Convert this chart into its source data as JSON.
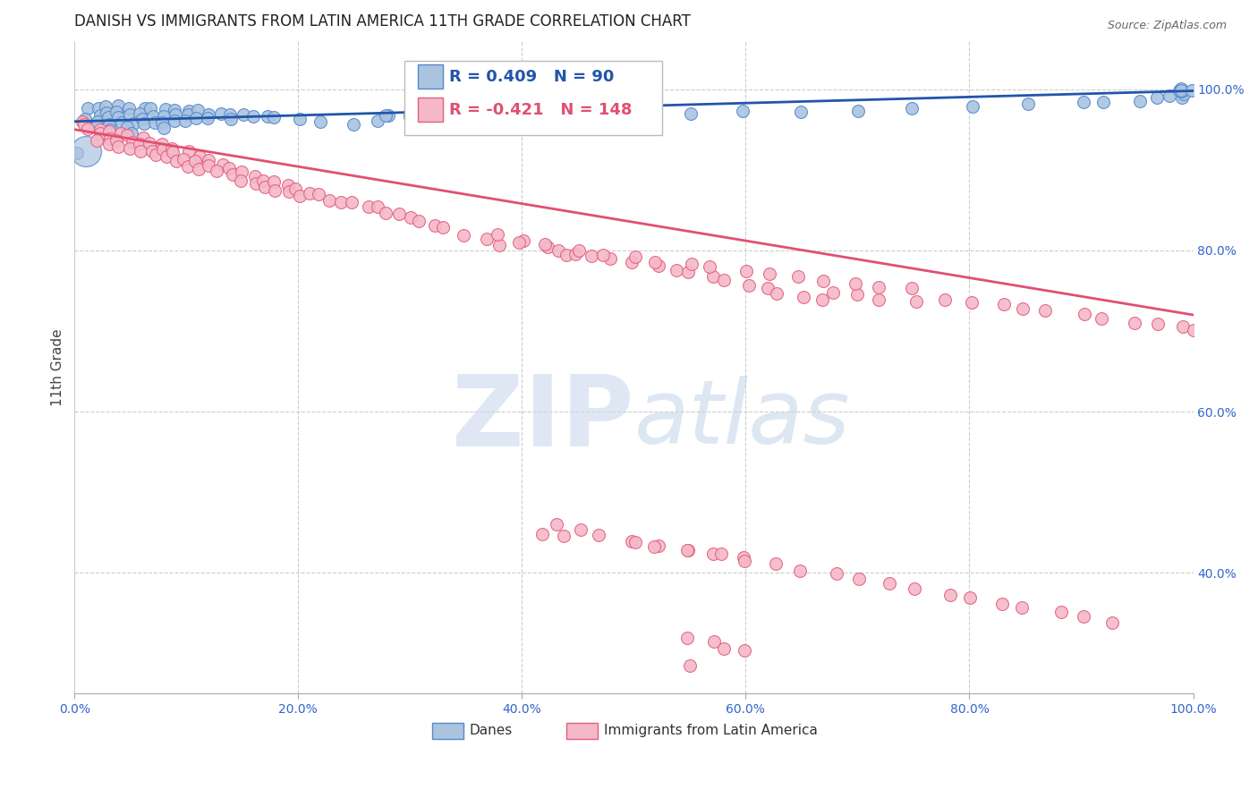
{
  "title": "DANISH VS IMMIGRANTS FROM LATIN AMERICA 11TH GRADE CORRELATION CHART",
  "source": "Source: ZipAtlas.com",
  "ylabel": "11th Grade",
  "danes_R": 0.409,
  "danes_N": 90,
  "immigrants_R": -0.421,
  "immigrants_N": 148,
  "danes_color": "#aac4e0",
  "danes_edge_color": "#5588cc",
  "danes_line_color": "#2255aa",
  "immigrants_color": "#f5b8c8",
  "immigrants_edge_color": "#e06080",
  "immigrants_line_color": "#e05070",
  "legend_danes": "Danes",
  "legend_immigrants": "Immigrants from Latin America",
  "background_color": "#ffffff",
  "grid_color": "#cccccc",
  "title_color": "#222222",
  "axis_label_color": "#444444",
  "tick_color": "#3366cc",
  "xlim": [
    0.0,
    1.0
  ],
  "ylim": [
    0.25,
    1.06
  ],
  "xticks": [
    0.0,
    0.2,
    0.4,
    0.6,
    0.8,
    1.0
  ],
  "xtick_labels": [
    "0.0%",
    "20.0%",
    "40.0%",
    "60.0%",
    "80.0%",
    "100.0%"
  ],
  "yticks": [
    0.4,
    0.6,
    0.8,
    1.0
  ],
  "ytick_labels": [
    "40.0%",
    "60.0%",
    "80.0%",
    "100.0%"
  ],
  "danes_x": [
    0.005,
    0.01,
    0.01,
    0.02,
    0.02,
    0.02,
    0.02,
    0.03,
    0.03,
    0.03,
    0.03,
    0.03,
    0.04,
    0.04,
    0.04,
    0.04,
    0.05,
    0.05,
    0.05,
    0.05,
    0.05,
    0.06,
    0.06,
    0.06,
    0.06,
    0.07,
    0.07,
    0.07,
    0.08,
    0.08,
    0.08,
    0.08,
    0.09,
    0.09,
    0.09,
    0.1,
    0.1,
    0.1,
    0.11,
    0.11,
    0.12,
    0.12,
    0.13,
    0.14,
    0.14,
    0.15,
    0.16,
    0.17,
    0.18,
    0.2,
    0.22,
    0.25,
    0.27,
    0.28,
    0.3,
    0.32,
    0.35,
    0.38,
    0.42,
    0.45,
    0.5,
    0.55,
    0.6,
    0.65,
    0.7,
    0.75,
    0.8,
    0.85,
    0.9,
    0.92,
    0.95,
    0.97,
    0.98,
    0.99,
    0.99,
    0.99,
    0.99,
    0.99,
    0.99,
    1.0,
    0.28,
    0.3,
    0.32,
    0.34,
    0.36,
    0.38,
    0.4,
    0.42,
    0.44,
    0.46
  ],
  "danes_y": [
    0.92,
    0.975,
    0.965,
    0.975,
    0.968,
    0.96,
    0.953,
    0.978,
    0.972,
    0.965,
    0.958,
    0.95,
    0.978,
    0.972,
    0.965,
    0.958,
    0.975,
    0.968,
    0.96,
    0.953,
    0.945,
    0.978,
    0.97,
    0.963,
    0.956,
    0.975,
    0.968,
    0.96,
    0.975,
    0.968,
    0.96,
    0.952,
    0.975,
    0.967,
    0.959,
    0.975,
    0.968,
    0.96,
    0.972,
    0.965,
    0.97,
    0.963,
    0.968,
    0.97,
    0.963,
    0.968,
    0.965,
    0.968,
    0.965,
    0.962,
    0.96,
    0.958,
    0.963,
    0.968,
    0.965,
    0.963,
    0.965,
    0.967,
    0.965,
    0.968,
    0.968,
    0.97,
    0.972,
    0.972,
    0.975,
    0.977,
    0.978,
    0.98,
    0.982,
    0.985,
    0.987,
    0.988,
    0.99,
    0.99,
    0.993,
    0.996,
    0.998,
    0.999,
    1.0,
    1.0,
    0.968,
    0.972,
    0.965,
    0.97,
    0.972,
    0.968,
    0.97,
    0.972,
    0.974,
    0.97
  ],
  "danes_large_x": [
    0.01
  ],
  "danes_large_y": [
    0.923
  ],
  "immigrants_x": [
    0.005,
    0.01,
    0.01,
    0.02,
    0.02,
    0.02,
    0.03,
    0.03,
    0.03,
    0.04,
    0.04,
    0.04,
    0.05,
    0.05,
    0.05,
    0.06,
    0.06,
    0.06,
    0.07,
    0.07,
    0.07,
    0.08,
    0.08,
    0.08,
    0.09,
    0.09,
    0.09,
    0.1,
    0.1,
    0.1,
    0.11,
    0.11,
    0.11,
    0.12,
    0.12,
    0.13,
    0.13,
    0.14,
    0.14,
    0.15,
    0.15,
    0.16,
    0.16,
    0.17,
    0.17,
    0.18,
    0.18,
    0.19,
    0.19,
    0.2,
    0.2,
    0.21,
    0.22,
    0.23,
    0.24,
    0.25,
    0.26,
    0.27,
    0.28,
    0.29,
    0.3,
    0.31,
    0.32,
    0.33,
    0.35,
    0.37,
    0.38,
    0.4,
    0.42,
    0.43,
    0.44,
    0.45,
    0.46,
    0.48,
    0.5,
    0.52,
    0.54,
    0.55,
    0.57,
    0.58,
    0.6,
    0.62,
    0.63,
    0.65,
    0.67,
    0.68,
    0.7,
    0.72,
    0.75,
    0.78,
    0.8,
    0.83,
    0.85,
    0.87,
    0.9,
    0.92,
    0.95,
    0.97,
    0.99,
    1.0,
    0.43,
    0.45,
    0.47,
    0.5,
    0.52,
    0.55,
    0.57,
    0.6,
    0.42,
    0.44,
    0.5,
    0.52,
    0.55,
    0.58,
    0.6,
    0.63,
    0.65,
    0.68,
    0.7,
    0.73,
    0.75,
    0.78,
    0.8,
    0.83,
    0.85,
    0.88,
    0.9,
    0.93,
    0.55,
    0.57,
    0.58,
    0.6,
    0.38,
    0.4,
    0.42,
    0.45,
    0.47,
    0.5,
    0.52,
    0.55,
    0.57,
    0.6,
    0.62,
    0.65,
    0.67,
    0.7,
    0.72,
    0.75
  ],
  "immigrants_y": [
    0.96,
    0.958,
    0.95,
    0.952,
    0.945,
    0.938,
    0.948,
    0.94,
    0.932,
    0.945,
    0.938,
    0.93,
    0.942,
    0.935,
    0.928,
    0.938,
    0.93,
    0.922,
    0.932,
    0.925,
    0.917,
    0.932,
    0.924,
    0.916,
    0.928,
    0.92,
    0.912,
    0.922,
    0.914,
    0.906,
    0.918,
    0.91,
    0.902,
    0.912,
    0.904,
    0.908,
    0.9,
    0.902,
    0.894,
    0.896,
    0.888,
    0.892,
    0.884,
    0.888,
    0.88,
    0.884,
    0.876,
    0.88,
    0.872,
    0.876,
    0.868,
    0.872,
    0.868,
    0.864,
    0.86,
    0.86,
    0.856,
    0.852,
    0.848,
    0.844,
    0.84,
    0.836,
    0.832,
    0.828,
    0.82,
    0.812,
    0.808,
    0.812,
    0.804,
    0.8,
    0.796,
    0.796,
    0.792,
    0.788,
    0.784,
    0.78,
    0.776,
    0.772,
    0.768,
    0.764,
    0.756,
    0.752,
    0.748,
    0.744,
    0.74,
    0.748,
    0.744,
    0.74,
    0.736,
    0.74,
    0.736,
    0.732,
    0.728,
    0.724,
    0.72,
    0.716,
    0.712,
    0.708,
    0.704,
    0.7,
    0.462,
    0.455,
    0.448,
    0.44,
    0.434,
    0.43,
    0.424,
    0.418,
    0.45,
    0.445,
    0.44,
    0.434,
    0.428,
    0.422,
    0.416,
    0.41,
    0.404,
    0.398,
    0.392,
    0.386,
    0.38,
    0.374,
    0.368,
    0.362,
    0.356,
    0.35,
    0.344,
    0.338,
    0.32,
    0.314,
    0.308,
    0.302,
    0.82,
    0.812,
    0.808,
    0.8,
    0.796,
    0.792,
    0.788,
    0.784,
    0.78,
    0.776,
    0.772,
    0.768,
    0.764,
    0.76,
    0.756,
    0.752
  ],
  "immigrants_outlier_x": [
    0.55
  ],
  "immigrants_outlier_y": [
    0.285
  ]
}
